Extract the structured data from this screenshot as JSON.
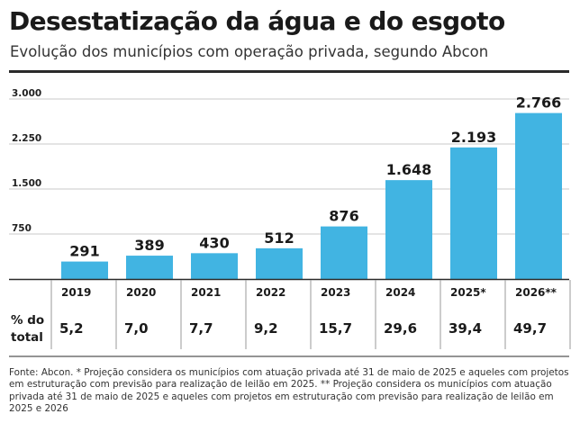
{
  "title": "Desestatização da água e do esgoto",
  "subtitle": "Evolução dos municípios com operação privada, segundo Abcon",
  "footnote": "Fonte: Abcon. * Projeção considera os municípios com atuação privada até 31 de maio de 2025 e aqueles com projetos em estruturação com previsão para realização de leilão em 2025. ** Projeção considera os municípios com atuação privada até 31 de maio de 2025 e aqueles com projetos em estruturação com previsão para realização de leilão em 2025 e 2026",
  "colors": {
    "bar": "#41b4e2",
    "axis": "#2a2a2a",
    "grid": "#c8c8c8"
  },
  "chart_data": {
    "type": "bar",
    "categories": [
      "2019",
      "2020",
      "2021",
      "2022",
      "2023",
      "2024",
      "2025*",
      "2026**"
    ],
    "values": [
      291,
      389,
      430,
      512,
      876,
      1648,
      2193,
      2766
    ],
    "value_labels": [
      "291",
      "389",
      "430",
      "512",
      "876",
      "1.648",
      "2.193",
      "2.766"
    ],
    "yticks": [
      750,
      1500,
      2250,
      3000
    ],
    "ytick_labels": [
      "750",
      "1.500",
      "2.250",
      "3.000"
    ],
    "ylim": [
      0,
      3000
    ],
    "grid": true,
    "table": {
      "row_label": [
        "% do",
        "total"
      ],
      "values": [
        "5,2",
        "7,0",
        "7,7",
        "9,2",
        "15,7",
        "29,6",
        "39,4",
        "49,7"
      ]
    }
  }
}
